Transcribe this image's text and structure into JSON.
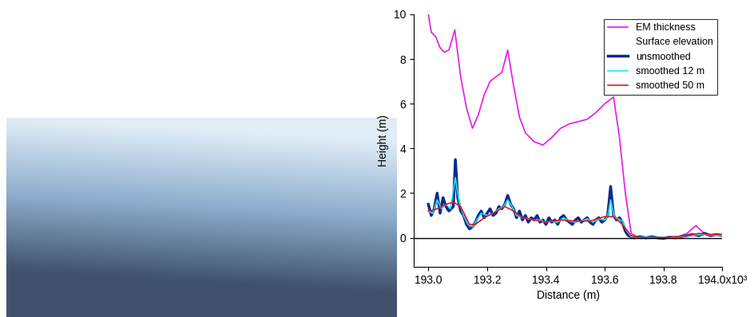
{
  "chart_data": {
    "type": "line",
    "xlabel": "Distance (m)",
    "ylabel": "Height (m)",
    "xlim": [
      192950,
      194000
    ],
    "xticks": [
      {
        "value": 193000,
        "label": "193.0"
      },
      {
        "value": 193200,
        "label": "193.2"
      },
      {
        "value": 193400,
        "label": "193.4"
      },
      {
        "value": 193600,
        "label": "193.6"
      },
      {
        "value": 193800,
        "label": "193.8"
      },
      {
        "value": 194000,
        "label": "194.0x10³"
      }
    ],
    "ylim": [
      -1.3,
      10
    ],
    "yticks": [
      0,
      2,
      4,
      6,
      8,
      10
    ],
    "legend": "upper right",
    "series": [
      {
        "name": "EM thickness",
        "color": "#e619e6",
        "x": [
          193000,
          193010,
          193025,
          193040,
          193055,
          193070,
          193090,
          193110,
          193130,
          193150,
          193170,
          193190,
          193210,
          193230,
          193250,
          193270,
          193290,
          193310,
          193330,
          193360,
          193390,
          193420,
          193450,
          193480,
          193510,
          193540,
          193570,
          193600,
          193630,
          193650,
          193670,
          193690,
          193710,
          193750,
          193800,
          193850,
          193880,
          193910,
          193930,
          193950,
          193975,
          194000
        ],
        "values": [
          10.0,
          9.2,
          9.0,
          8.5,
          8.3,
          8.4,
          9.3,
          7.2,
          5.8,
          4.9,
          5.5,
          6.4,
          7.0,
          7.2,
          7.4,
          8.4,
          6.8,
          5.4,
          4.7,
          4.3,
          4.15,
          4.5,
          4.9,
          5.1,
          5.2,
          5.3,
          5.6,
          6.0,
          6.3,
          4.5,
          2.0,
          0.2,
          0.05,
          0.0,
          0.0,
          0.05,
          0.2,
          0.55,
          0.3,
          0.1,
          0.15,
          0.15
        ]
      },
      {
        "name": "unsmoothed",
        "group": "Surface elevation",
        "color": "#0a2a8c",
        "x": [
          193000,
          193010,
          193020,
          193030,
          193040,
          193050,
          193060,
          193070,
          193085,
          193092,
          193100,
          193110,
          193120,
          193130,
          193140,
          193150,
          193160,
          193170,
          193180,
          193190,
          193200,
          193210,
          193220,
          193230,
          193240,
          193250,
          193260,
          193270,
          193280,
          193290,
          193300,
          193310,
          193320,
          193330,
          193340,
          193350,
          193360,
          193370,
          193380,
          193390,
          193400,
          193410,
          193420,
          193430,
          193440,
          193450,
          193460,
          193470,
          193480,
          193490,
          193500,
          193510,
          193520,
          193530,
          193540,
          193550,
          193560,
          193570,
          193580,
          193590,
          193600,
          193610,
          193620,
          193630,
          193640,
          193650,
          193660,
          193670,
          193680,
          193690,
          193700,
          193720,
          193740,
          193760,
          193780,
          193800,
          193820,
          193840,
          193860,
          193880,
          193900,
          193920,
          193940,
          193960,
          193980,
          194000
        ],
        "values": [
          1.5,
          1.0,
          1.3,
          2.0,
          1.1,
          1.8,
          1.4,
          1.2,
          1.4,
          3.5,
          1.8,
          1.2,
          1.0,
          0.6,
          0.4,
          0.5,
          0.7,
          1.0,
          1.2,
          0.9,
          1.1,
          1.3,
          1.0,
          1.1,
          1.4,
          1.3,
          1.5,
          1.9,
          1.5,
          1.3,
          0.9,
          1.2,
          0.8,
          1.0,
          0.7,
          0.9,
          0.8,
          1.0,
          0.7,
          0.8,
          0.6,
          0.9,
          0.7,
          0.8,
          0.6,
          0.9,
          1.0,
          0.8,
          0.7,
          0.6,
          0.8,
          0.9,
          0.7,
          0.8,
          0.9,
          0.7,
          0.6,
          0.8,
          0.9,
          0.7,
          0.8,
          1.0,
          2.3,
          1.0,
          0.8,
          0.9,
          0.7,
          0.3,
          0.1,
          0.05,
          0.0,
          0.05,
          0.0,
          0.05,
          0.0,
          -0.02,
          0.03,
          0.0,
          0.05,
          0.1,
          0.15,
          0.1,
          0.2,
          0.1,
          0.15,
          0.1
        ]
      },
      {
        "name": "smoothed 12 m",
        "group": "Surface elevation",
        "color": "#1ee6f0",
        "x": [
          193000,
          193015,
          193030,
          193045,
          193060,
          193075,
          193092,
          193105,
          193120,
          193135,
          193150,
          193165,
          193180,
          193200,
          193220,
          193240,
          193255,
          193270,
          193285,
          193300,
          193320,
          193340,
          193360,
          193380,
          193400,
          193420,
          193440,
          193460,
          193480,
          193500,
          193520,
          193540,
          193560,
          193580,
          193600,
          193610,
          193620,
          193632,
          193645,
          193660,
          193675,
          193690,
          193710,
          193750,
          193800,
          193850,
          193900,
          193940,
          193970,
          194000
        ],
        "values": [
          1.2,
          1.1,
          1.7,
          1.3,
          1.5,
          1.3,
          2.7,
          1.6,
          1.0,
          0.6,
          0.5,
          0.8,
          1.1,
          1.0,
          1.1,
          1.3,
          1.4,
          1.7,
          1.4,
          1.0,
          0.9,
          0.85,
          0.8,
          0.8,
          0.7,
          0.75,
          0.7,
          0.9,
          0.75,
          0.7,
          0.75,
          0.85,
          0.7,
          0.85,
          0.8,
          0.95,
          1.7,
          0.95,
          0.85,
          0.75,
          0.3,
          0.05,
          0.02,
          0.02,
          0.0,
          0.03,
          0.12,
          0.15,
          0.12,
          0.1
        ]
      },
      {
        "name": "smoothed 50 m",
        "group": "Surface elevation",
        "color": "#e8141e",
        "x": [
          193000,
          193030,
          193060,
          193085,
          193110,
          193140,
          193160,
          193190,
          193220,
          193260,
          193290,
          193320,
          193360,
          193400,
          193450,
          193500,
          193550,
          193600,
          193630,
          193660,
          193690,
          193720,
          193800,
          193880,
          193920,
          193960,
          194000
        ],
        "values": [
          1.2,
          1.3,
          1.5,
          1.6,
          1.4,
          0.6,
          0.6,
          0.9,
          1.1,
          1.4,
          1.2,
          0.9,
          0.8,
          0.7,
          0.8,
          0.75,
          0.75,
          0.95,
          0.95,
          0.6,
          0.1,
          0.0,
          0.0,
          0.1,
          0.2,
          0.15,
          0.15
        ]
      }
    ]
  }
}
